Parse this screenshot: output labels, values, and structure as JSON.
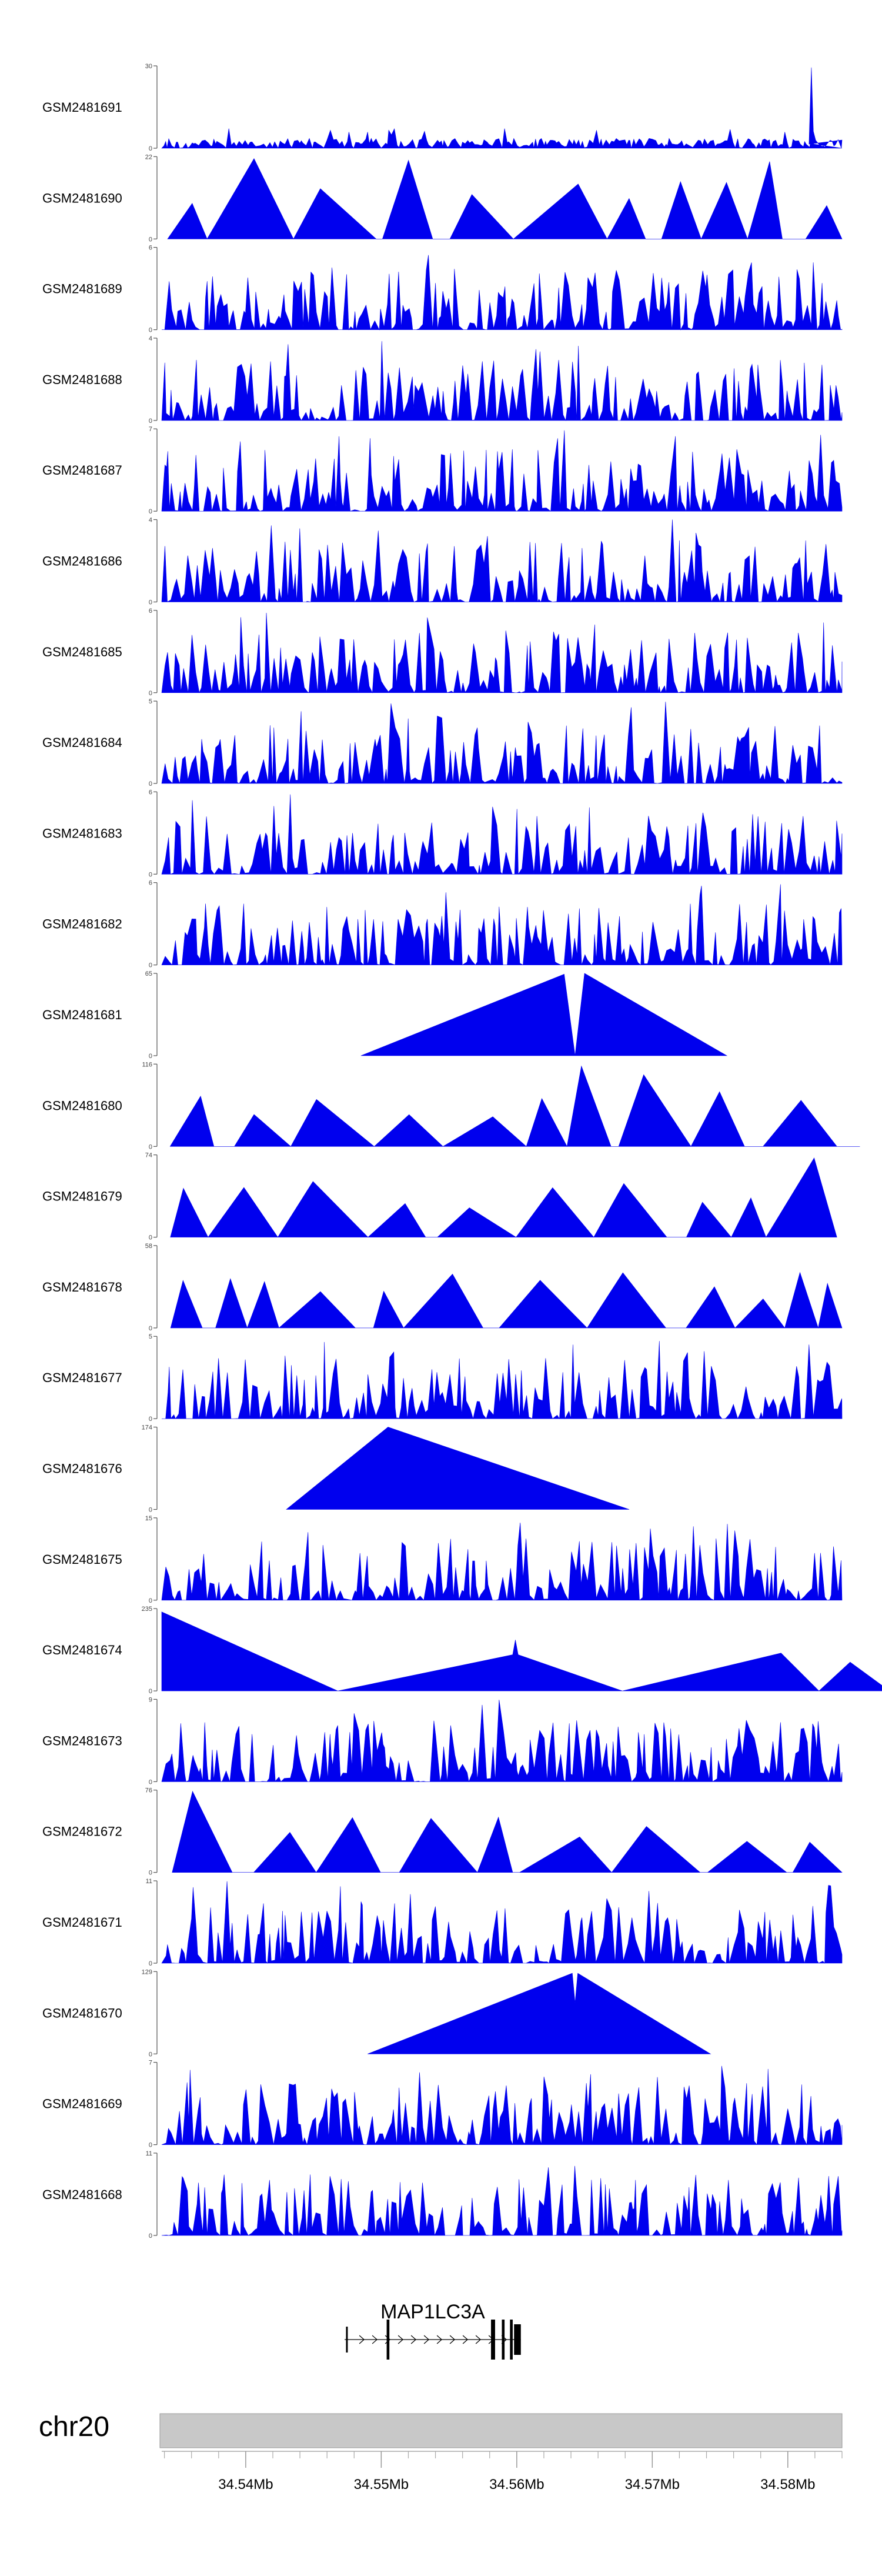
{
  "chart_data": {
    "type": "area",
    "tracks": [
      {
        "name": "GSM2481691",
        "ymax": "30",
        "ymin": "0",
        "pattern": "dense",
        "peak": 30,
        "seed": 11
      },
      {
        "name": "GSM2481690",
        "ymax": "22",
        "ymin": "0",
        "pattern": "tri",
        "peak": 22,
        "seed": 12
      },
      {
        "name": "GSM2481689",
        "ymax": "6",
        "ymin": "0",
        "pattern": "spiky",
        "peak": 6,
        "seed": 13
      },
      {
        "name": "GSM2481688",
        "ymax": "4",
        "ymin": "0",
        "pattern": "spiky",
        "peak": 4,
        "seed": 14
      },
      {
        "name": "GSM2481687",
        "ymax": "7",
        "ymin": "0",
        "pattern": "spiky",
        "peak": 7,
        "seed": 15
      },
      {
        "name": "GSM2481686",
        "ymax": "4",
        "ymin": "0",
        "pattern": "spiky",
        "peak": 4,
        "seed": 16
      },
      {
        "name": "GSM2481685",
        "ymax": "6",
        "ymin": "0",
        "pattern": "spiky",
        "peak": 6,
        "seed": 17
      },
      {
        "name": "GSM2481684",
        "ymax": "5",
        "ymin": "0",
        "pattern": "spiky",
        "peak": 5,
        "seed": 18
      },
      {
        "name": "GSM2481683",
        "ymax": "6",
        "ymin": "0",
        "pattern": "spiky",
        "peak": 6,
        "seed": 19
      },
      {
        "name": "GSM2481682",
        "ymax": "6",
        "ymin": "0",
        "pattern": "spiky",
        "peak": 6,
        "seed": 20
      },
      {
        "name": "GSM2481681",
        "ymax": "65",
        "ymin": "0",
        "pattern": "big",
        "peak": 65,
        "seed": 21
      },
      {
        "name": "GSM2481680",
        "ymax": "116",
        "ymin": "0",
        "pattern": "tri",
        "peak": 116,
        "seed": 22
      },
      {
        "name": "GSM2481679",
        "ymax": "74",
        "ymin": "0",
        "pattern": "tri",
        "peak": 74,
        "seed": 23
      },
      {
        "name": "GSM2481678",
        "ymax": "58",
        "ymin": "0",
        "pattern": "tri",
        "peak": 58,
        "seed": 24
      },
      {
        "name": "GSM2481677",
        "ymax": "5",
        "ymin": "0",
        "pattern": "spiky",
        "peak": 5,
        "seed": 25
      },
      {
        "name": "GSM2481676",
        "ymax": "174",
        "ymin": "0",
        "pattern": "big",
        "peak": 174,
        "seed": 26
      },
      {
        "name": "GSM2481675",
        "ymax": "15",
        "ymin": "0",
        "pattern": "spiky",
        "peak": 15,
        "seed": 27
      },
      {
        "name": "GSM2481674",
        "ymax": "235",
        "ymin": "0",
        "pattern": "big",
        "peak": 235,
        "seed": 28
      },
      {
        "name": "GSM2481673",
        "ymax": "9",
        "ymin": "0",
        "pattern": "spiky",
        "peak": 9,
        "seed": 29
      },
      {
        "name": "GSM2481672",
        "ymax": "76",
        "ymin": "0",
        "pattern": "tri",
        "peak": 76,
        "seed": 30
      },
      {
        "name": "GSM2481671",
        "ymax": "11",
        "ymin": "0",
        "pattern": "spiky",
        "peak": 11,
        "seed": 31
      },
      {
        "name": "GSM2481670",
        "ymax": "129",
        "ymin": "0",
        "pattern": "big",
        "peak": 129,
        "seed": 32
      },
      {
        "name": "GSM2481669",
        "ymax": "7",
        "ymin": "0",
        "pattern": "spiky",
        "peak": 7,
        "seed": 33
      },
      {
        "name": "GSM2481668",
        "ymax": "11",
        "ymin": "0",
        "pattern": "spiky",
        "peak": 11,
        "seed": 34
      }
    ],
    "big_shapes": {
      "GSM2481681": [
        [
          34.5485,
          0
        ],
        [
          34.5635,
          0.99
        ],
        [
          34.5643,
          0
        ],
        [
          34.565,
          1.0
        ],
        [
          34.5755,
          0
        ]
      ],
      "GSM2481676": [
        [
          34.543,
          0
        ],
        [
          34.5505,
          1.0
        ],
        [
          34.5683,
          0
        ]
      ],
      "GSM2481674": [
        [
          34.5338,
          0
        ],
        [
          34.5338,
          0.96
        ],
        [
          34.5468,
          0
        ],
        [
          34.5597,
          0.44
        ],
        [
          34.5599,
          0.62
        ],
        [
          34.5601,
          0.44
        ],
        [
          34.5678,
          0
        ],
        [
          34.5795,
          0.46
        ],
        [
          34.5823,
          0
        ],
        [
          34.5846,
          0.35
        ],
        [
          34.5875,
          0
        ]
      ],
      "GSM2481670": [
        [
          34.549,
          0
        ],
        [
          34.5641,
          0.98
        ],
        [
          34.5643,
          0.62
        ],
        [
          34.5645,
          0.98
        ],
        [
          34.5743,
          0
        ]
      ]
    },
    "x_domain": [
      34.5338,
      34.584
    ],
    "x_ticks": [
      34.54,
      34.55,
      34.56,
      34.57,
      34.58
    ],
    "x_tick_labels": [
      "34.54Mb",
      "34.55Mb",
      "34.56Mb",
      "34.57Mb",
      "34.58Mb"
    ],
    "gene": {
      "label": "MAP1LC3A",
      "start": 34.5473,
      "end": 34.5603,
      "exons": [
        [
          34.5474,
          34.5475
        ],
        [
          34.5504,
          34.5506
        ],
        [
          34.5581,
          34.5584
        ],
        [
          34.5589,
          34.5591
        ],
        [
          34.5595,
          34.5597
        ],
        [
          34.5598,
          34.5603
        ]
      ]
    },
    "chromosome": "chr20",
    "fill_color": "#0000ee",
    "ideogram_color": "#c8c8c8"
  }
}
